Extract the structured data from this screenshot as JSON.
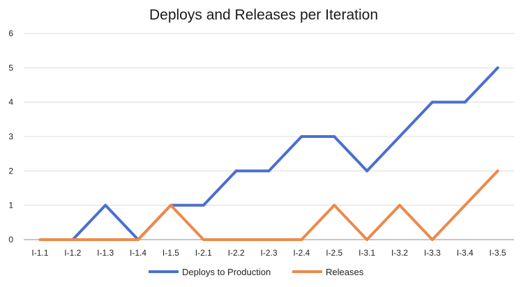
{
  "chart_data": {
    "type": "line",
    "title": "Deploys and Releases per Iteration",
    "xlabel": "",
    "ylabel": "",
    "ylim": [
      0,
      6
    ],
    "yticks": [
      0,
      1,
      2,
      3,
      4,
      5,
      6
    ],
    "grid": true,
    "legend_position": "bottom",
    "categories": [
      "I-1.1",
      "I-1.2",
      "I-1.3",
      "I-1.4",
      "I-1.5",
      "I-2.1",
      "I-2.2",
      "I-2.3",
      "I-2.4",
      "I-2.5",
      "I-3.1",
      "I-3.2",
      "I-3.3",
      "I-3.4",
      "I-3.5"
    ],
    "series": [
      {
        "name": "Deploys to Production",
        "color": "#4a6fd0",
        "values": [
          null,
          0,
          1,
          0,
          1,
          1,
          2,
          2,
          3,
          3,
          2,
          3,
          4,
          4,
          5
        ]
      },
      {
        "name": "Releases",
        "color": "#ec8a4a",
        "values": [
          0,
          0,
          0,
          0,
          1,
          0,
          0,
          0,
          0,
          1,
          0,
          1,
          0,
          1,
          2
        ]
      }
    ]
  }
}
